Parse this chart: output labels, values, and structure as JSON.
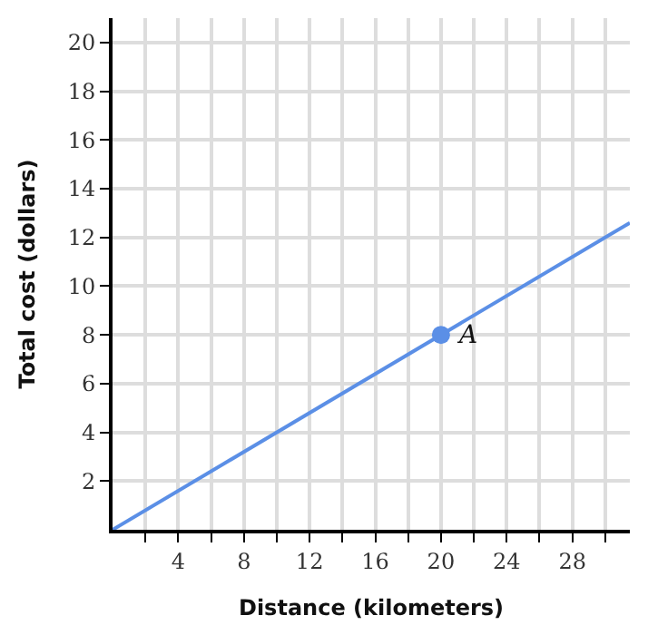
{
  "chart_data": {
    "type": "line",
    "xlabel": "Distance (kilometers)",
    "ylabel": "Total cost (dollars)",
    "xlim": [
      0,
      31.5
    ],
    "ylim": [
      0,
      21
    ],
    "xticks": [
      {
        "value": 2,
        "label": null
      },
      4,
      {
        "value": 6,
        "label": null
      },
      8,
      {
        "value": 10,
        "label": null
      },
      12,
      {
        "value": 14,
        "label": null
      },
      16,
      {
        "value": 18,
        "label": null
      },
      20,
      {
        "value": 22,
        "label": null
      },
      24,
      {
        "value": 26,
        "label": null
      },
      28,
      {
        "value": 30,
        "label": null
      }
    ],
    "yticks": [
      2,
      4,
      6,
      8,
      10,
      12,
      14,
      16,
      18,
      20
    ],
    "grid": true,
    "series": [
      {
        "color": "#5b8fe6",
        "x": [
          0,
          31.5
        ],
        "values": [
          0,
          12.6
        ],
        "marker": "none"
      },
      {
        "type": "scatter",
        "color": "#5b8fe6",
        "x": [
          20
        ],
        "values": [
          8
        ],
        "marker": "circle"
      }
    ],
    "annotations": [
      {
        "text": "A",
        "x": 20,
        "y": 8
      }
    ]
  }
}
